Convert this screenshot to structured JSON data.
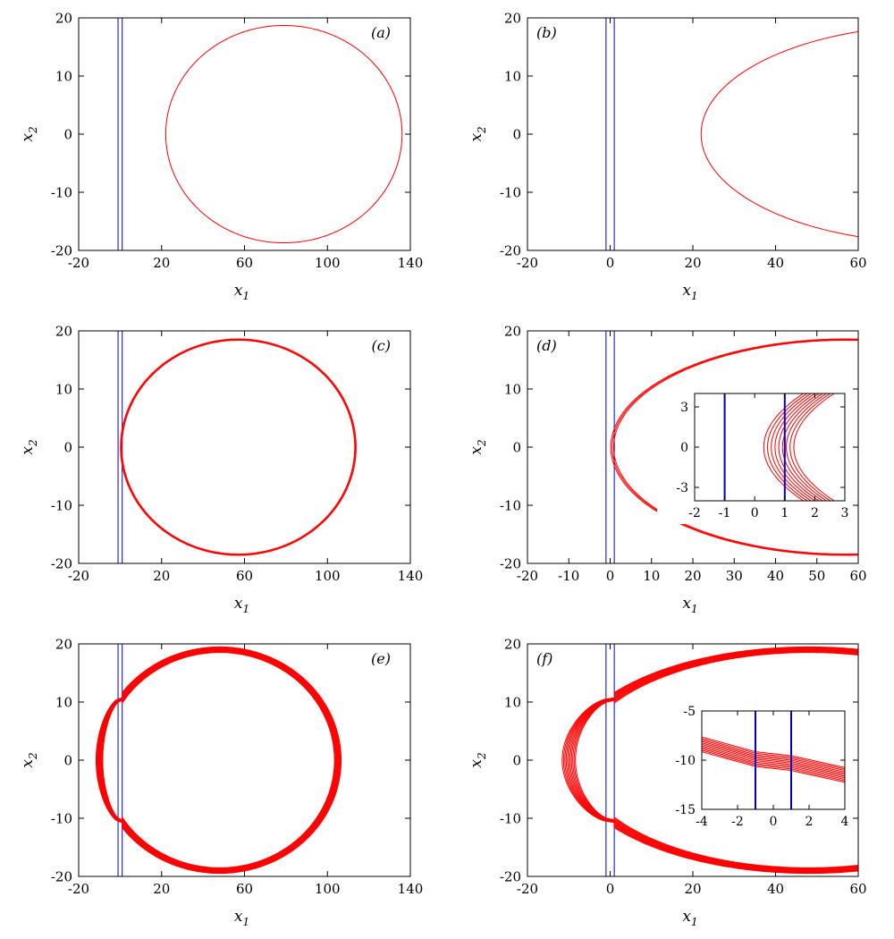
{
  "colors": {
    "trajectory": "#ff0000",
    "boundary": "#0000cc",
    "axes": "#000000"
  },
  "chart_data": [
    {
      "id": "a",
      "type": "line",
      "panel_label": "(a)",
      "xlabel": "x",
      "xlabel_sub": "1",
      "ylabel": "x",
      "ylabel_sub": "2",
      "xlim": [
        -20,
        140
      ],
      "ylim": [
        -20,
        20
      ],
      "xticks": [
        "-20",
        "20",
        "60",
        "100",
        "140"
      ],
      "xtick_values": [
        -20,
        20,
        60,
        100,
        140
      ],
      "yticks": [
        "-20",
        "-10",
        "0",
        "10",
        "20"
      ],
      "ytick_values": [
        -20,
        -10,
        0,
        10,
        20
      ],
      "vlines": [
        -1,
        1
      ],
      "series": [
        {
          "shape": "ellipse",
          "center": [
            79,
            0
          ],
          "rx": 57,
          "ry": 18.7,
          "bands": 1,
          "spread": 0
        }
      ]
    },
    {
      "id": "b",
      "type": "line",
      "panel_label": "(b)",
      "xlabel": "x",
      "xlabel_sub": "1",
      "ylabel": "x",
      "ylabel_sub": "2",
      "xlim": [
        -20,
        60
      ],
      "ylim": [
        -20,
        20
      ],
      "xticks": [
        "-20",
        "0",
        "20",
        "40",
        "60"
      ],
      "xtick_values": [
        -20,
        0,
        20,
        40,
        60
      ],
      "yticks": [
        "-20",
        "-10",
        "0",
        "10",
        "20"
      ],
      "ytick_values": [
        -20,
        -10,
        0,
        10,
        20
      ],
      "vlines": [
        -1,
        1
      ],
      "series": [
        {
          "shape": "ellipse",
          "center": [
            79,
            0
          ],
          "rx": 57,
          "ry": 18.7,
          "bands": 1,
          "spread": 0
        }
      ]
    },
    {
      "id": "c",
      "type": "line",
      "panel_label": "(c)",
      "xlabel": "x",
      "xlabel_sub": "1",
      "ylabel": "x",
      "ylabel_sub": "2",
      "xlim": [
        -20,
        140
      ],
      "ylim": [
        -20,
        20
      ],
      "xticks": [
        "-20",
        "20",
        "60",
        "100",
        "140"
      ],
      "xtick_values": [
        -20,
        20,
        60,
        100,
        140
      ],
      "yticks": [
        "-20",
        "-10",
        "0",
        "10",
        "20"
      ],
      "ytick_values": [
        -20,
        -10,
        0,
        10,
        20
      ],
      "vlines": [
        -1,
        1
      ],
      "series": [
        {
          "shape": "ellipse",
          "center": [
            57,
            0
          ],
          "rx": 56.5,
          "ry": 18.5,
          "bands": 3,
          "spread": 0.35
        }
      ]
    },
    {
      "id": "d",
      "type": "line",
      "panel_label": "(d)",
      "xlabel": "x",
      "xlabel_sub": "1",
      "ylabel": "x",
      "ylabel_sub": "2",
      "xlim": [
        -20,
        60
      ],
      "ylim": [
        -20,
        20
      ],
      "xticks": [
        "-20",
        "-10",
        "0",
        "10",
        "20",
        "30",
        "40",
        "50",
        "60"
      ],
      "xtick_values": [
        -20,
        -10,
        0,
        10,
        20,
        30,
        40,
        50,
        60
      ],
      "yticks": [
        "-20",
        "-10",
        "0",
        "10",
        "20"
      ],
      "ytick_values": [
        -20,
        -10,
        0,
        10,
        20
      ],
      "vlines": [
        -1,
        1
      ],
      "series": [
        {
          "shape": "ellipse",
          "center": [
            57,
            0
          ],
          "rx": 56.5,
          "ry": 18.5,
          "bands": 3,
          "spread": 0.35
        }
      ],
      "inset": {
        "xlim": [
          -2,
          3
        ],
        "ylim": [
          -4,
          4
        ],
        "xticks": [
          "-2",
          "-1",
          "0",
          "1",
          "2",
          "3"
        ],
        "xtick_values": [
          -2,
          -1,
          0,
          1,
          2,
          3
        ],
        "yticks": [
          "-3",
          "0",
          "3"
        ],
        "ytick_values": [
          -3,
          0,
          3
        ],
        "vlines": [
          -1,
          1
        ],
        "series": [
          {
            "shape": "ellipse",
            "center": [
              57,
              0
            ],
            "rx": 56.2,
            "ry": 18.5,
            "bands": 9,
            "spread": 0.5
          }
        ]
      }
    },
    {
      "id": "e",
      "type": "line",
      "panel_label": "(e)",
      "xlabel": "x",
      "xlabel_sub": "1",
      "ylabel": "x",
      "ylabel_sub": "2",
      "xlim": [
        -20,
        140
      ],
      "ylim": [
        -20,
        20
      ],
      "xticks": [
        "-20",
        "20",
        "60",
        "100",
        "140"
      ],
      "xtick_values": [
        -20,
        20,
        60,
        100,
        140
      ],
      "yticks": [
        "-20",
        "-10",
        "0",
        "10",
        "20"
      ],
      "ytick_values": [
        -20,
        -10,
        0,
        10,
        20
      ],
      "vlines": [
        -1,
        1
      ],
      "series": [
        {
          "shape": "kinked",
          "x_left": -10,
          "x_right": 105,
          "center": [
            48,
            0
          ],
          "ry": 19,
          "y_kink": 10.5,
          "bands": 11,
          "spread": 1.6
        }
      ]
    },
    {
      "id": "f",
      "type": "line",
      "panel_label": "(f)",
      "xlabel": "x",
      "xlabel_sub": "1",
      "ylabel": "x",
      "ylabel_sub": "2",
      "xlim": [
        -20,
        60
      ],
      "ylim": [
        -20,
        20
      ],
      "xticks": [
        "-20",
        "0",
        "20",
        "40",
        "60"
      ],
      "xtick_values": [
        -20,
        0,
        20,
        40,
        60
      ],
      "yticks": [
        "-20",
        "-10",
        "0",
        "10",
        "20"
      ],
      "ytick_values": [
        -20,
        -10,
        0,
        10,
        20
      ],
      "vlines": [
        -1,
        1
      ],
      "series": [
        {
          "shape": "kinked",
          "x_left": -10,
          "x_right": 105,
          "center": [
            48,
            0
          ],
          "ry": 19,
          "y_kink": 10.5,
          "bands": 11,
          "spread": 1.6
        }
      ],
      "inset": {
        "xlim": [
          -4,
          4
        ],
        "ylim": [
          -15,
          -5
        ],
        "xticks": [
          "-4",
          "-2",
          "0",
          "2",
          "4"
        ],
        "xtick_values": [
          -4,
          -2,
          0,
          2,
          4
        ],
        "yticks": [
          "-15",
          "-10",
          "-5"
        ],
        "ytick_values": [
          -15,
          -10,
          -5
        ],
        "vlines": [
          -1,
          1
        ],
        "series": [
          {
            "shape": "band-line",
            "points": [
              [
                -4,
                -8.4
              ],
              [
                -1,
                -9.9
              ],
              [
                1,
                -10.3
              ],
              [
                4,
                -11.5
              ]
            ],
            "bands": 11,
            "spread": 0.75
          }
        ]
      }
    }
  ]
}
